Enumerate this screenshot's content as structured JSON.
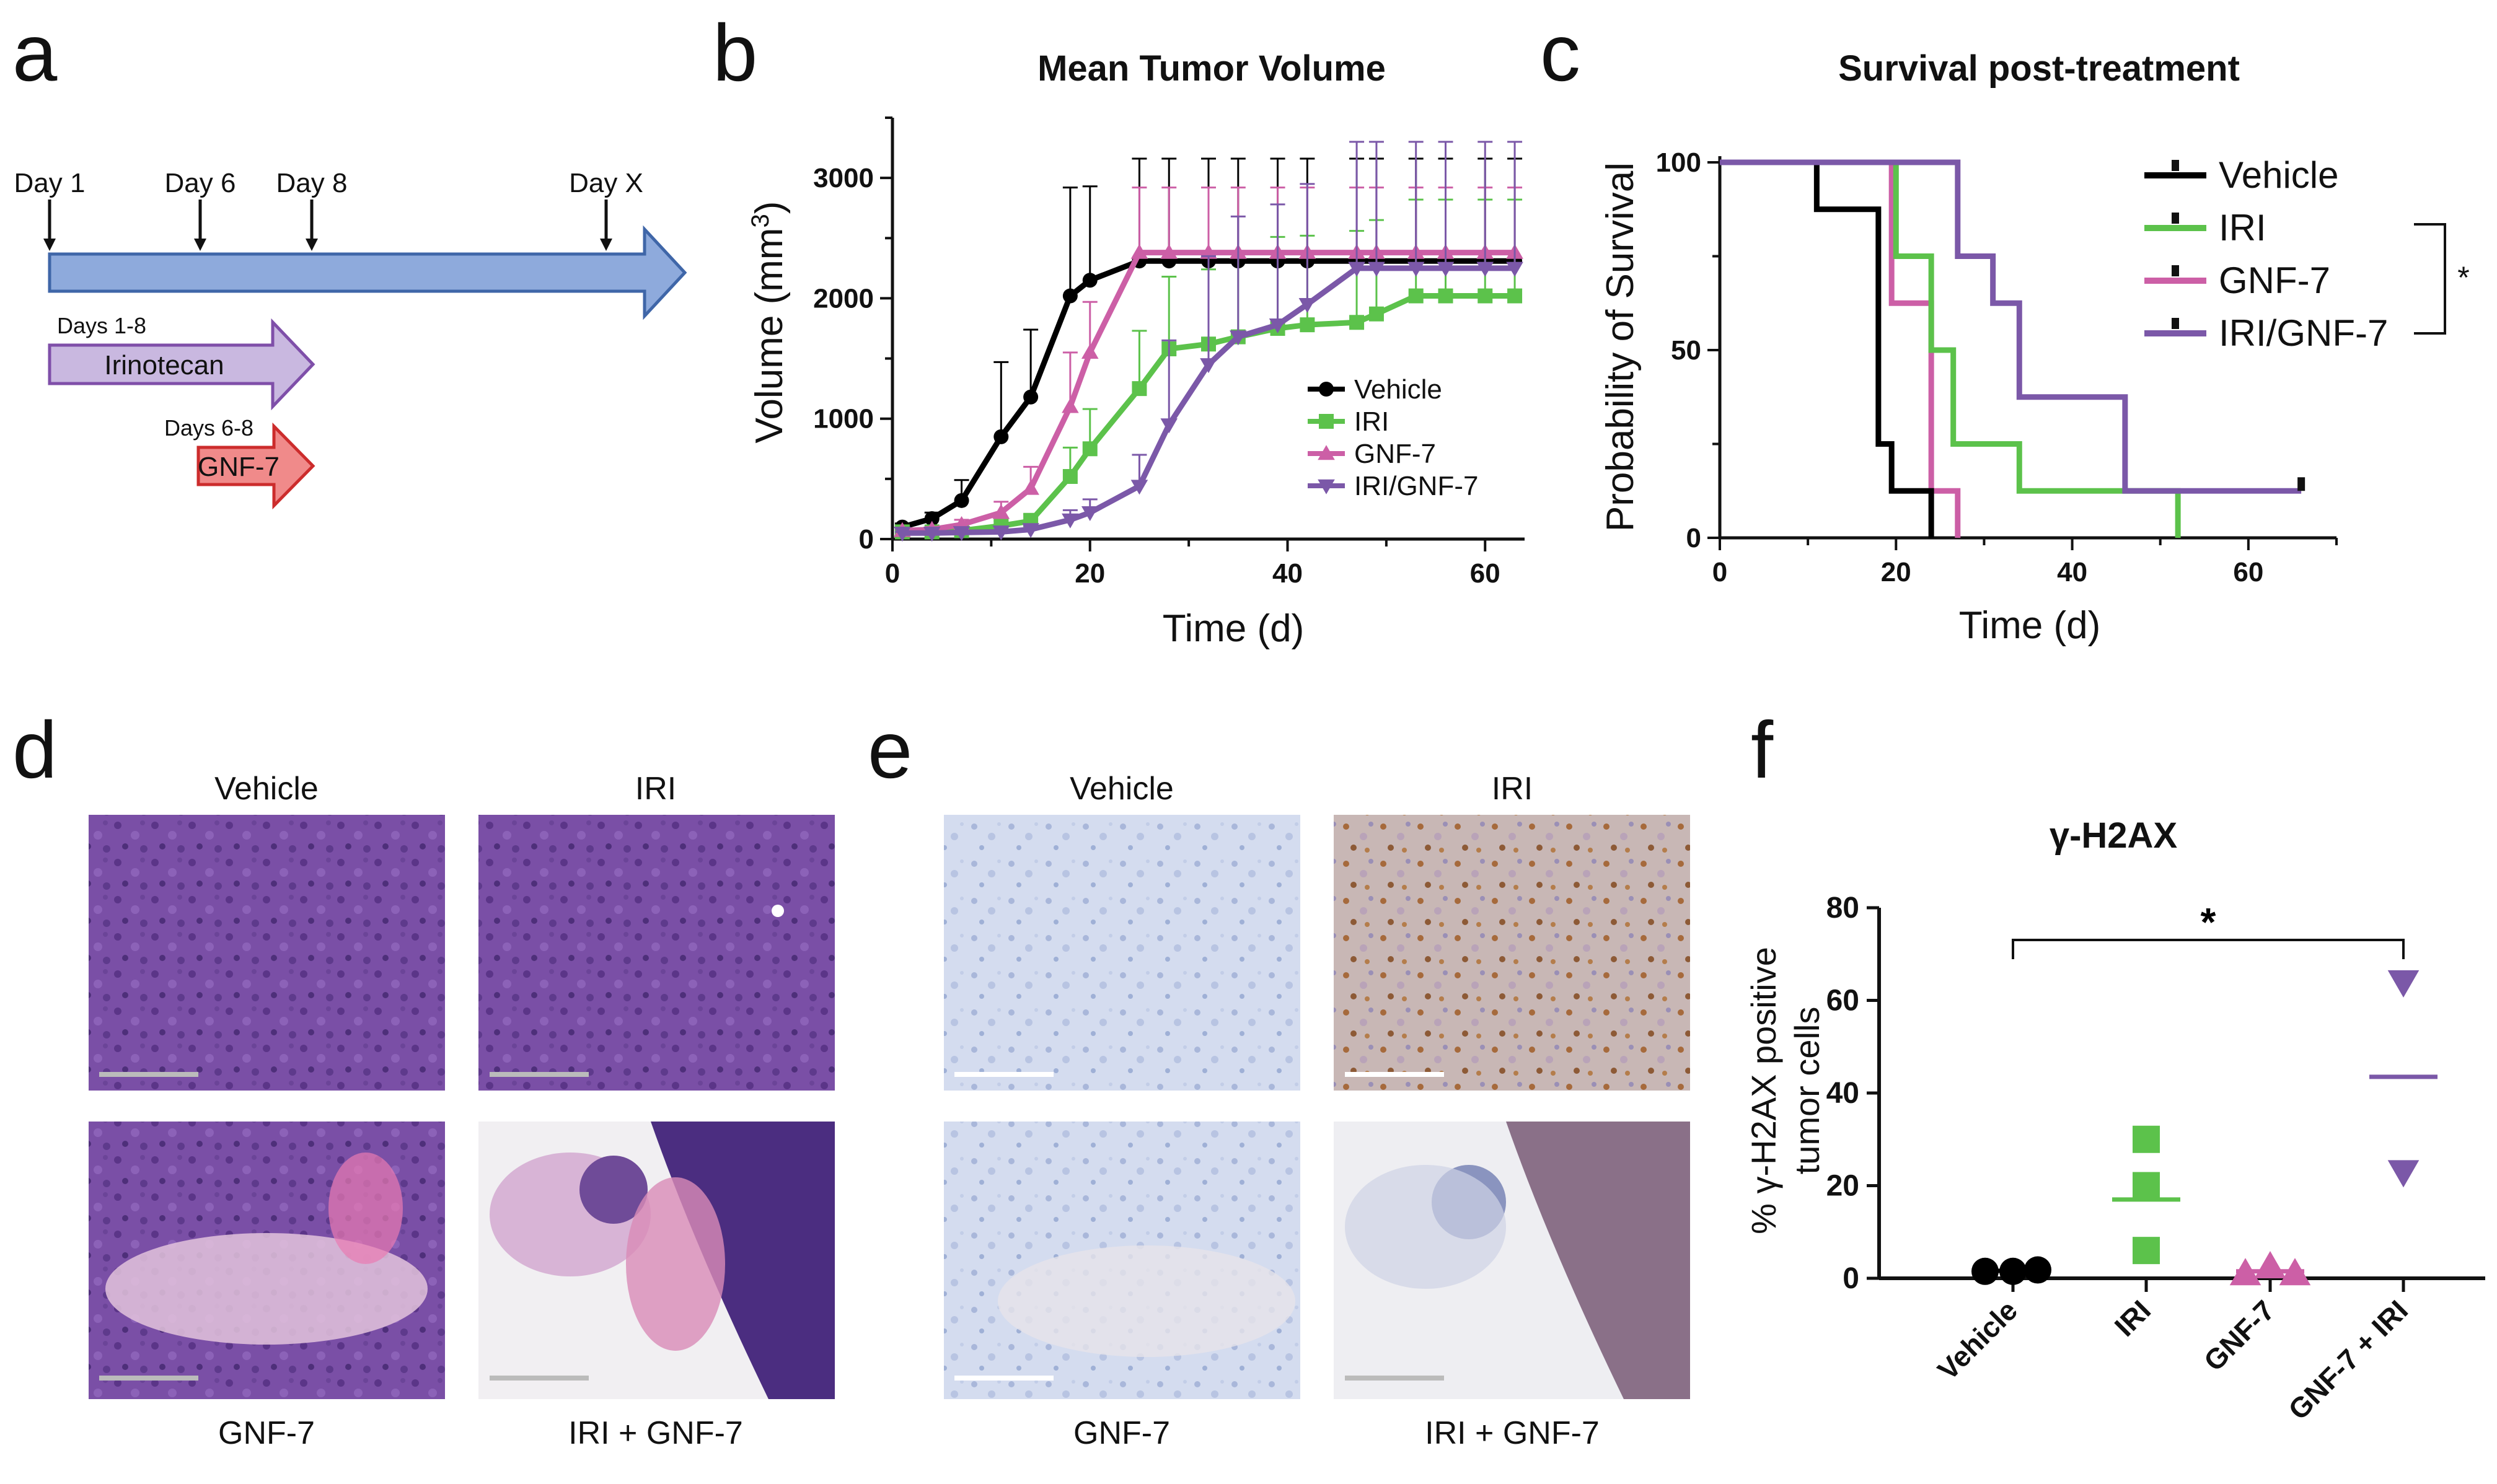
{
  "colors": {
    "vehicle": "#000000",
    "iri": "#5cc24b",
    "gnf7": "#cc5fa6",
    "combo": "#7b58a8",
    "timeline": "#8eaadc",
    "irinotecan_arrow": "#c9b8e0",
    "gnf7_arrow": "#f08a8a"
  },
  "panel_a": {
    "letter": "a",
    "day_labels": [
      "Day 1",
      "Day 6",
      "Day 8",
      "Day X"
    ],
    "irinotecan": {
      "days": "Days 1-8",
      "label": "Irinotecan"
    },
    "gnf7": {
      "days": "Days 6-8",
      "label": "GNF-7"
    }
  },
  "panel_d": {
    "letter": "d",
    "labels": [
      "Vehicle",
      "IRI",
      "GNF-7",
      "IRI + GNF-7"
    ]
  },
  "panel_e": {
    "letter": "e",
    "labels": [
      "Vehicle",
      "IRI",
      "GNF-7",
      "IRI + GNF-7"
    ]
  },
  "chart_data": [
    {
      "id": "b",
      "letter": "b",
      "type": "line",
      "title": "Mean Tumor Volume",
      "xlabel": "Time (d)",
      "ylabel": "Volume (mm",
      "ylabel_sup": "3",
      "ylabel_end": ")",
      "xlim": [
        0,
        64
      ],
      "ylim": [
        0,
        3500
      ],
      "xticks": [
        0,
        20,
        40,
        60
      ],
      "yticks": [
        0,
        1000,
        2000,
        3000
      ],
      "legend_position": "center-right",
      "series": [
        {
          "name": "Vehicle",
          "color_key": "vehicle",
          "marker": "circle",
          "x": [
            1,
            4,
            7,
            11,
            14,
            18,
            20,
            25,
            28,
            32,
            35,
            39,
            42,
            47,
            49,
            53,
            56,
            60,
            63
          ],
          "y": [
            100,
            170,
            320,
            850,
            1180,
            2020,
            2150,
            2310,
            2310,
            2310,
            2310,
            2310,
            2310,
            2310,
            2310,
            2310,
            2310,
            2310,
            2310
          ],
          "err": [
            30,
            50,
            170,
            620,
            560,
            900,
            780,
            850,
            850,
            850,
            850,
            850,
            850,
            850,
            850,
            850,
            850,
            850,
            850
          ]
        },
        {
          "name": "IRI",
          "color_key": "iri",
          "marker": "square",
          "x": [
            1,
            4,
            7,
            11,
            14,
            18,
            20,
            25,
            28,
            32,
            35,
            39,
            42,
            47,
            49,
            53,
            56,
            60,
            63
          ],
          "y": [
            60,
            60,
            70,
            110,
            150,
            520,
            750,
            1250,
            1580,
            1620,
            1680,
            1750,
            1780,
            1800,
            1870,
            2020,
            2020,
            2020,
            2020
          ],
          "err": [
            15,
            15,
            20,
            40,
            60,
            240,
            330,
            480,
            600,
            620,
            700,
            760,
            740,
            760,
            780,
            800,
            800,
            800,
            800
          ]
        },
        {
          "name": "GNF-7",
          "color_key": "gnf7",
          "marker": "triangle-up",
          "x": [
            1,
            4,
            7,
            11,
            14,
            18,
            20,
            25,
            28,
            32,
            35,
            39,
            42,
            47,
            49,
            53,
            56,
            60,
            63
          ],
          "y": [
            70,
            80,
            120,
            220,
            420,
            1100,
            1550,
            2380,
            2380,
            2380,
            2380,
            2380,
            2380,
            2380,
            2380,
            2380,
            2380,
            2380,
            2380
          ],
          "err": [
            20,
            20,
            40,
            90,
            180,
            450,
            420,
            540,
            540,
            540,
            540,
            540,
            540,
            540,
            540,
            540,
            540,
            540,
            540
          ]
        },
        {
          "name": "IRI/GNF-7",
          "color_key": "combo",
          "marker": "triangle-down",
          "x": [
            1,
            4,
            7,
            11,
            14,
            18,
            20,
            25,
            28,
            32,
            35,
            39,
            42,
            47,
            49,
            53,
            56,
            60,
            63
          ],
          "y": [
            50,
            50,
            55,
            60,
            80,
            160,
            220,
            440,
            950,
            1450,
            1680,
            1780,
            1950,
            2250,
            2250,
            2250,
            2250,
            2250,
            2250
          ],
          "err": [
            10,
            10,
            10,
            15,
            30,
            80,
            110,
            260,
            700,
            900,
            1000,
            1000,
            1000,
            1050,
            1050,
            1050,
            1050,
            1050,
            1050
          ]
        }
      ]
    },
    {
      "id": "c",
      "letter": "c",
      "type": "line",
      "subtype": "kaplan-meier",
      "title": "Survival post-treatment",
      "xlabel": "Time (d)",
      "ylabel": "Probability of Survival",
      "xlim": [
        0,
        70
      ],
      "ylim": [
        0,
        100
      ],
      "xticks": [
        0,
        20,
        40,
        60
      ],
      "yticks": [
        0,
        50,
        100
      ],
      "legend_position": "top-right",
      "significance": "*",
      "series": [
        {
          "name": "Vehicle",
          "color_key": "vehicle",
          "steps": [
            [
              0,
              100
            ],
            [
              11,
              87.5
            ],
            [
              18,
              25
            ],
            [
              19.5,
              12.5
            ],
            [
              24,
              0
            ]
          ]
        },
        {
          "name": "IRI",
          "color_key": "iri",
          "steps": [
            [
              0,
              100
            ],
            [
              20,
              75
            ],
            [
              24,
              50
            ],
            [
              26.5,
              25
            ],
            [
              34,
              12.5
            ],
            [
              52,
              0
            ]
          ]
        },
        {
          "name": "GNF-7",
          "color_key": "gnf7",
          "steps": [
            [
              0,
              100
            ],
            [
              19.5,
              62.5
            ],
            [
              24,
              12.5
            ],
            [
              27,
              0
            ]
          ]
        },
        {
          "name": "IRI/GNF-7",
          "color_key": "combo",
          "steps": [
            [
              0,
              100
            ],
            [
              27,
              75
            ],
            [
              31,
              62.5
            ],
            [
              34,
              37.5
            ],
            [
              46,
              12.5
            ],
            [
              66,
              12.5
            ]
          ],
          "censored_at": 66
        }
      ]
    },
    {
      "id": "f",
      "letter": "f",
      "type": "scatter",
      "title": "γ-H2AX",
      "xlabel": "",
      "ylabel_line1": "% γ-H2AX positive",
      "ylabel_line2": "tumor cells",
      "ylim": [
        0,
        80
      ],
      "yticks": [
        0,
        20,
        40,
        60,
        80
      ],
      "significance": "*",
      "categories": [
        "Vehicle",
        "IRI",
        "GNF-7",
        "GNF-7 + IRI"
      ],
      "groups": [
        {
          "name": "Vehicle",
          "color_key": "vehicle",
          "marker": "circle",
          "values": [
            1.5,
            1.5,
            1.8
          ],
          "mean": 1.6
        },
        {
          "name": "IRI",
          "color_key": "iri",
          "marker": "square",
          "values": [
            30,
            20,
            6
          ],
          "mean": 17
        },
        {
          "name": "GNF-7",
          "color_key": "gnf7",
          "marker": "triangle-up",
          "values": [
            1,
            2.5,
            1
          ],
          "mean": 1.5
        },
        {
          "name": "GNF-7 + IRI",
          "color_key": "combo",
          "marker": "triangle-down",
          "values": [
            64,
            23
          ],
          "mean": 43.5
        }
      ]
    }
  ]
}
